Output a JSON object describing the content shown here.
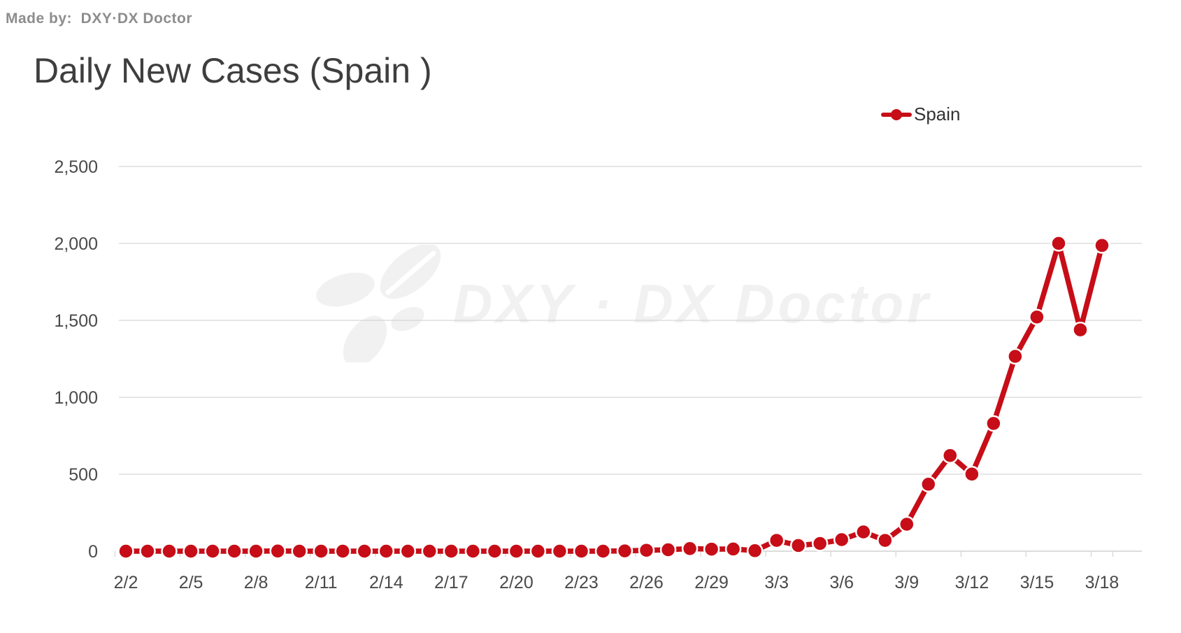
{
  "header": {
    "made_by": "Made by:  DXY·DX Doctor"
  },
  "watermark": {
    "text": "DXY · DX Doctor"
  },
  "chart_data": {
    "type": "line",
    "title": "Daily New Cases (Spain )",
    "legend_position": "top-right",
    "grid": true,
    "xlabel": "",
    "ylabel": "",
    "ylim": [
      0,
      2500
    ],
    "y_ticks": [
      0,
      500,
      1000,
      1500,
      2000,
      2500
    ],
    "y_tick_labels": [
      "0",
      "500",
      "1,000",
      "1,500",
      "2,000",
      "2,500"
    ],
    "x_tick_labels": [
      "2/2",
      "2/5",
      "2/8",
      "2/11",
      "2/14",
      "2/17",
      "2/20",
      "2/23",
      "2/26",
      "2/29",
      "3/3",
      "3/6",
      "3/9",
      "3/12",
      "3/15",
      "3/18"
    ],
    "categories": [
      "2/2",
      "2/3",
      "2/4",
      "2/5",
      "2/6",
      "2/7",
      "2/8",
      "2/9",
      "2/10",
      "2/11",
      "2/12",
      "2/13",
      "2/14",
      "2/15",
      "2/16",
      "2/17",
      "2/18",
      "2/19",
      "2/20",
      "2/21",
      "2/22",
      "2/23",
      "2/24",
      "2/25",
      "2/26",
      "2/27",
      "2/28",
      "2/29",
      "3/1",
      "3/2",
      "3/3",
      "3/4",
      "3/5",
      "3/6",
      "3/7",
      "3/8",
      "3/9",
      "3/10",
      "3/11",
      "3/12",
      "3/13",
      "3/14",
      "3/15",
      "3/16",
      "3/17",
      "3/18"
    ],
    "series": [
      {
        "name": "Spain",
        "color": "#c70d17",
        "values": [
          0,
          0,
          0,
          0,
          0,
          0,
          0,
          1,
          0,
          0,
          0,
          0,
          0,
          0,
          0,
          0,
          0,
          0,
          0,
          0,
          0,
          0,
          0,
          2,
          6,
          9,
          17,
          13,
          14,
          3,
          70,
          37,
          50,
          75,
          125,
          70,
          175,
          435,
          622,
          501,
          830,
          1266,
          1522,
          2000,
          1438,
          1987
        ]
      }
    ],
    "colors": {
      "red": "#c70d17",
      "grid": "#d6d6d6",
      "axis_line": "#c6c6c6",
      "axis_label": "#4a4a4a",
      "title": "#3e3e3e",
      "made_by": "#8d8d8d",
      "legend_label": "#333333",
      "watermark": "#f1f1f1",
      "background": "#ffffff"
    }
  }
}
